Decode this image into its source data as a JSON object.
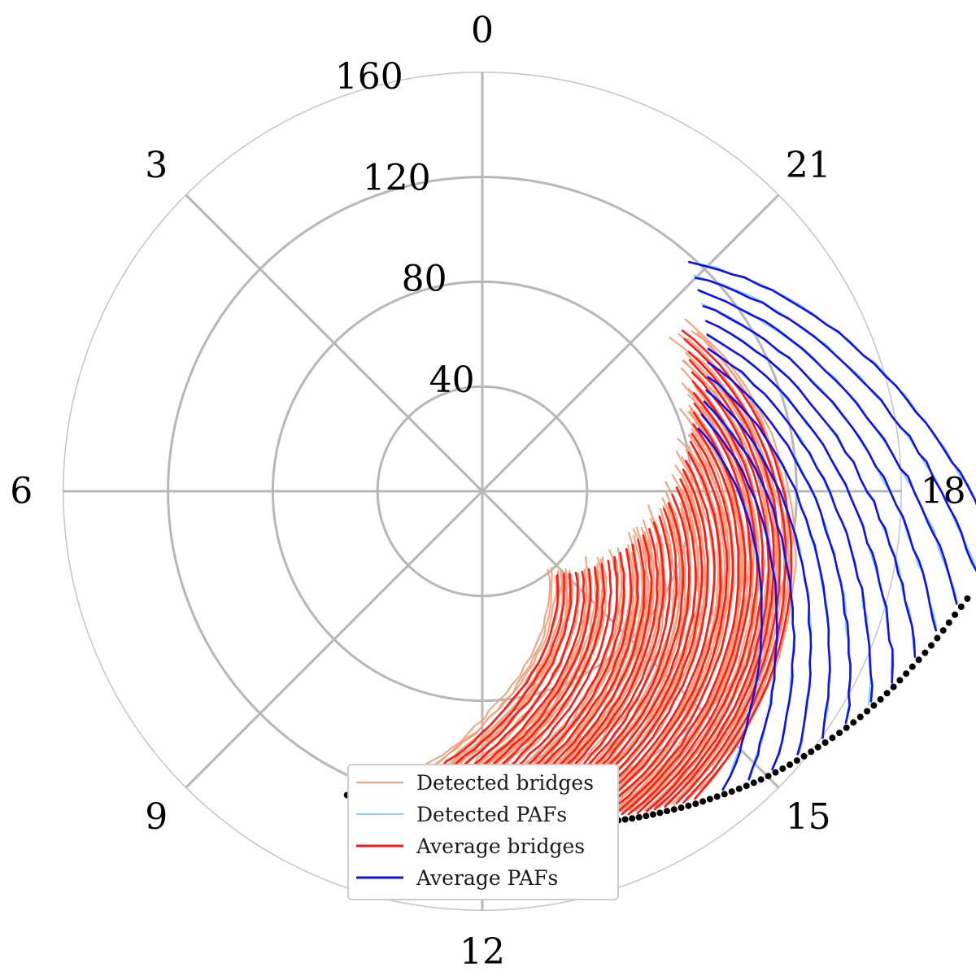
{
  "chart_data": {
    "type": "polar-line",
    "title": "",
    "angular_axis": {
      "unit": "MLT hours",
      "direction": "0 at top, 6 at left (counter-clockwise)",
      "tick_labels": [
        "0",
        "3",
        "6",
        "9",
        "12",
        "15",
        "18",
        "21"
      ],
      "tick_values": [
        0,
        3,
        6,
        9,
        12,
        15,
        18,
        21
      ]
    },
    "radial_axis": {
      "range": [
        0,
        160
      ],
      "tick_values": [
        40,
        80,
        120,
        160
      ],
      "tick_labels": [
        "40",
        "80",
        "120",
        "160"
      ]
    },
    "grid": true,
    "legend": {
      "placement": "bottom-center",
      "entries": [
        {
          "label": "Detected bridges",
          "color": "#f5a07a"
        },
        {
          "label": "Detected PAFs",
          "color": "#87cefa"
        },
        {
          "label": "Average bridges",
          "color": "#ff1a1a"
        },
        {
          "label": "Average PAFs",
          "color": "#1010ee"
        }
      ]
    },
    "boundary": {
      "name": "dotted black boundary",
      "color": "#000000",
      "points": [
        [
          10.4,
          127
        ],
        [
          11.0,
          126
        ],
        [
          11.5,
          126
        ],
        [
          12.0,
          127
        ],
        [
          12.5,
          128
        ],
        [
          13.0,
          131
        ],
        [
          13.5,
          136
        ],
        [
          14.0,
          141
        ],
        [
          14.5,
          147
        ],
        [
          15.0,
          154
        ],
        [
          15.5,
          161
        ],
        [
          16.0,
          169
        ],
        [
          16.5,
          177
        ],
        [
          17.0,
          186
        ],
        [
          17.5,
          197
        ],
        [
          18.0,
          205
        ],
        [
          18.5,
          214
        ],
        [
          19.0,
          219
        ]
      ]
    },
    "average_bridges": {
      "color": "#ff1a1a",
      "count": 38,
      "start_mlt": [
        10.8,
        14.3
      ],
      "end_mlt": [
        14.8,
        20.6
      ],
      "start_r_offset_from_boundary": 2,
      "end_r": [
        43,
        98
      ]
    },
    "average_pafs": {
      "color": "#1010ee",
      "count": 13,
      "start_mlt": [
        14.6,
        17.6
      ],
      "end_mlt": [
        19.1,
        21.2
      ],
      "start_r_offset_from_boundary": 2,
      "end_r": [
        86,
        118
      ]
    },
    "detected_bridges_color": "#f5a07a",
    "detected_pafs_color": "#87cefa"
  }
}
